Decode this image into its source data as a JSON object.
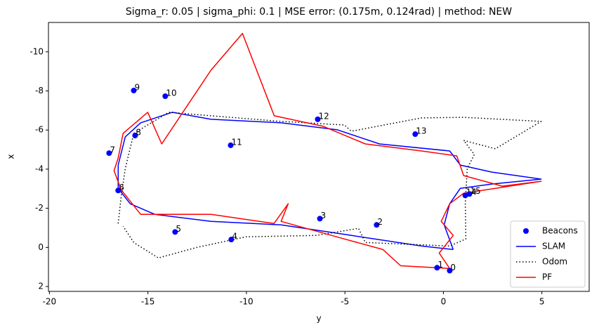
{
  "chart_data": {
    "type": "line",
    "title": "Sigma_r: 0.05 | sigma_phi: 0.1 | MSE error: (0.175m, 0.124rad) | method: NEW",
    "x_label": "y",
    "y_label": "x",
    "xlim": [
      -20.05,
      7.4
    ],
    "ylim": [
      2.25,
      -11.5
    ],
    "xticks": [
      -20,
      -15,
      -10,
      -5,
      0,
      5
    ],
    "yticks": [
      -10,
      -8,
      -6,
      -4,
      -2,
      0,
      2
    ],
    "grid": false,
    "legend_position": "lower right",
    "series": [
      {
        "name": "Beacons",
        "type": "scatter",
        "color": "#0000ff",
        "x": [
          0.32,
          -0.32,
          -3.39,
          -6.27,
          -10.77,
          -13.62,
          -16.51,
          -16.97,
          -15.65,
          -15.72,
          -14.12,
          -10.8,
          -6.38,
          -1.43,
          1.11,
          1.32
        ],
        "values": [
          1.19,
          1.04,
          -1.15,
          -1.47,
          -0.4,
          -0.79,
          -2.91,
          -4.82,
          -5.72,
          -8.02,
          -7.73,
          -5.22,
          -6.55,
          -5.79,
          -2.66,
          -2.73
        ],
        "labels": [
          "0",
          "1",
          "2",
          "3",
          "4",
          "5",
          "6",
          "7",
          "8",
          "9",
          "10",
          "11",
          "12",
          "13",
          "14",
          "15"
        ]
      },
      {
        "name": "SLAM",
        "type": "line",
        "color": "#0000ff",
        "linestyle": "solid",
        "x": [
          0.5,
          -1.11,
          -4.67,
          -8.24,
          -11.8,
          -14.65,
          -15.9,
          -16.51,
          -16.51,
          -16.15,
          -15.37,
          -13.76,
          -11.8,
          -8.24,
          -5.38,
          -3.24,
          0.32,
          0.86,
          2.46,
          4.96,
          2.46,
          0.86,
          0.32,
          0.04,
          0.5
        ],
        "values": [
          0.11,
          -0.07,
          -0.61,
          -1.15,
          -1.33,
          -1.69,
          -2.23,
          -3.02,
          -4.21,
          -5.65,
          -6.37,
          -6.91,
          -6.55,
          -6.37,
          -6.01,
          -5.29,
          -4.93,
          -4.21,
          -3.85,
          -3.49,
          -3.24,
          -3.02,
          -2.23,
          -1.15,
          0.11
        ]
      },
      {
        "name": "Odom",
        "type": "line",
        "color": "#000000",
        "linestyle": "dotted",
        "x": [
          -16.51,
          -16.36,
          -16.15,
          -15.72,
          -13.94,
          -11.8,
          -8.24,
          -5.03,
          -4.67,
          -1.11,
          1.03,
          4.96,
          2.64,
          1.03,
          1.57,
          1.21,
          1.11,
          1.14,
          0.32,
          -3.96,
          -4.31,
          -6.45,
          -10.02,
          -12.51,
          -14.47,
          -15.72,
          -16.26
        ],
        "values": [
          -1.22,
          -2.59,
          -4.03,
          -5.83,
          -6.91,
          -6.73,
          -6.44,
          -6.26,
          -5.94,
          -6.62,
          -6.65,
          -6.44,
          -5.04,
          -5.47,
          -4.75,
          -4.03,
          -2.23,
          -0.43,
          -0.07,
          -0.25,
          -0.97,
          -0.61,
          -0.54,
          0.0,
          0.54,
          -0.25,
          -1.08
        ]
      },
      {
        "name": "PF",
        "type": "line",
        "color": "#ff0000",
        "linestyle": "solid",
        "x": [
          0.32,
          -2.17,
          -3.07,
          -5.03,
          -8.24,
          -7.88,
          -8.6,
          -11.8,
          -15.37,
          -16.36,
          -16.72,
          -16.51,
          -16.26,
          -15.01,
          -14.3,
          -11.8,
          -10.2,
          -8.59,
          -6.1,
          -3.96,
          -1.11,
          0.68,
          1.03,
          2.99,
          4.96,
          1.03,
          0.32,
          -0.11,
          0.5,
          -0.21,
          0.32
        ],
        "values": [
          1.08,
          0.94,
          0.11,
          -0.43,
          -1.33,
          -2.23,
          -1.22,
          -1.69,
          -1.69,
          -2.95,
          -3.92,
          -4.57,
          -5.83,
          -6.91,
          -5.29,
          -9.06,
          -10.94,
          -6.73,
          -6.19,
          -5.29,
          -4.93,
          -4.68,
          -3.67,
          -3.13,
          -3.38,
          -2.77,
          -2.23,
          -1.33,
          -0.61,
          0.29,
          1.08
        ]
      }
    ]
  }
}
